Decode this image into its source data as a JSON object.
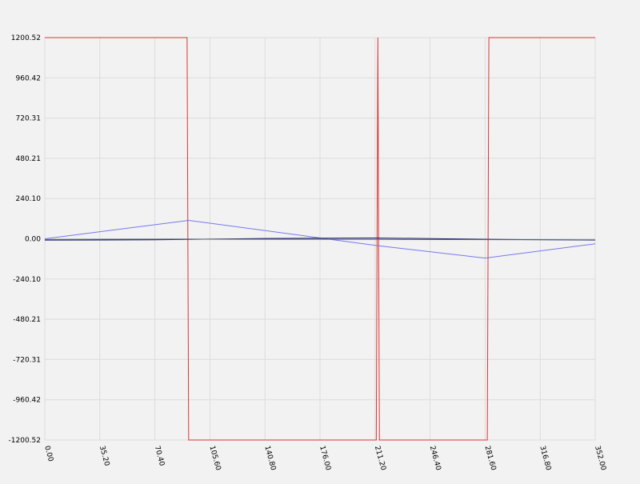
{
  "chart_data": {
    "type": "line",
    "title": "",
    "xlabel": "",
    "ylabel": "",
    "xlim": [
      0,
      352
    ],
    "ylim": [
      -1200.52,
      1200.52
    ],
    "grid": true,
    "legend": "none",
    "x_ticks": [
      "0.00",
      "35.20",
      "70.40",
      "105.60",
      "140.80",
      "176.00",
      "211.20",
      "246.40",
      "281.60",
      "316.80",
      "352.00"
    ],
    "y_ticks": [
      "1200.52",
      "960.42",
      "720.31",
      "480.21",
      "240.10",
      "0.00",
      "-240.10",
      "-480.21",
      "-720.31",
      "-960.42",
      "-1200.52"
    ],
    "x_tick_values": [
      0,
      35.2,
      70.4,
      105.6,
      140.8,
      176,
      211.2,
      246.4,
      281.6,
      316.8,
      352
    ],
    "y_tick_values": [
      1200.52,
      960.42,
      720.31,
      480.21,
      240.1,
      0,
      -240.1,
      -480.21,
      -720.31,
      -960.42,
      -1200.52
    ],
    "series": [
      {
        "color": "#dd3333",
        "x": [
          0,
          91,
          92,
          212,
          213,
          214,
          283,
          284,
          352
        ],
        "y": [
          1200.52,
          1200.52,
          -1200.52,
          -1200.52,
          1200.52,
          -1200.52,
          -1200.52,
          1200.52,
          1200.52
        ]
      },
      {
        "color": "#7777ee",
        "x": [
          0,
          92,
          176,
          212,
          281.6,
          352
        ],
        "y": [
          0,
          110,
          5,
          -40,
          -115,
          -30
        ]
      },
      {
        "color": "#1a1a66",
        "x": [
          0,
          70.4,
          140.8,
          211.2,
          281.6,
          352
        ],
        "y": [
          -8,
          -6,
          2,
          5,
          -3,
          -8
        ]
      },
      {
        "color": "#556677",
        "x": [
          0,
          88,
          176,
          264,
          352
        ],
        "y": [
          -4,
          -2,
          -3,
          -5,
          -6
        ]
      }
    ]
  }
}
